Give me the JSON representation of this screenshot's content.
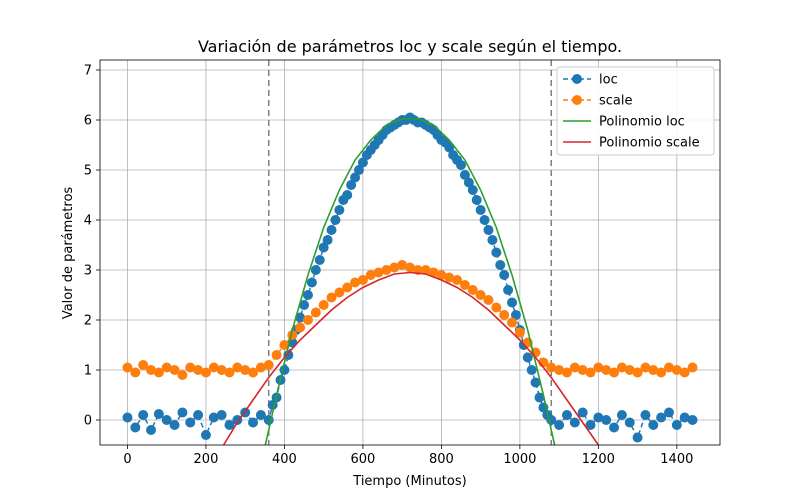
{
  "chart_data": {
    "type": "scatter",
    "title": "Variación de parámetros loc y scale según el tiempo.",
    "xlabel": "Tiempo (Minutos)",
    "ylabel": "Valor de parámetros",
    "xlim": [
      -70,
      1510
    ],
    "ylim": [
      -0.5,
      7.2
    ],
    "xticks": [
      0,
      200,
      400,
      600,
      800,
      1000,
      1200,
      1400
    ],
    "yticks": [
      0,
      1,
      2,
      3,
      4,
      5,
      6,
      7
    ],
    "grid": true,
    "legend": "top-right",
    "vlines": [
      360,
      1080
    ],
    "series": [
      {
        "name": "loc",
        "kind": "markers-dashed",
        "color": "#1f77b4",
        "x": [
          0,
          20,
          40,
          60,
          80,
          100,
          120,
          140,
          160,
          180,
          200,
          220,
          240,
          260,
          280,
          300,
          320,
          340,
          360,
          370,
          380,
          390,
          400,
          410,
          420,
          430,
          440,
          450,
          460,
          470,
          480,
          490,
          500,
          510,
          520,
          530,
          540,
          550,
          560,
          570,
          580,
          590,
          600,
          610,
          620,
          630,
          640,
          650,
          660,
          670,
          680,
          690,
          700,
          710,
          720,
          730,
          740,
          750,
          760,
          770,
          780,
          790,
          800,
          810,
          820,
          830,
          840,
          850,
          860,
          870,
          880,
          890,
          900,
          910,
          920,
          930,
          940,
          950,
          960,
          970,
          980,
          990,
          1000,
          1010,
          1020,
          1030,
          1040,
          1050,
          1060,
          1070,
          1080,
          1100,
          1120,
          1140,
          1160,
          1180,
          1200,
          1220,
          1240,
          1260,
          1280,
          1300,
          1320,
          1340,
          1360,
          1380,
          1400,
          1420,
          1440
        ],
        "values": [
          0.05,
          -0.15,
          0.1,
          -0.2,
          0.12,
          0.0,
          -0.1,
          0.15,
          -0.05,
          0.1,
          -0.3,
          0.05,
          0.1,
          -0.1,
          0.0,
          0.15,
          -0.05,
          0.1,
          0.0,
          0.3,
          0.45,
          0.8,
          1.0,
          1.3,
          1.55,
          1.8,
          2.05,
          2.3,
          2.5,
          2.75,
          3.0,
          3.2,
          3.45,
          3.6,
          3.8,
          4.0,
          4.2,
          4.4,
          4.5,
          4.7,
          4.85,
          5.0,
          5.15,
          5.3,
          5.4,
          5.5,
          5.6,
          5.7,
          5.8,
          5.85,
          5.9,
          5.95,
          6.0,
          6.0,
          6.05,
          6.0,
          5.95,
          5.95,
          5.9,
          5.85,
          5.8,
          5.7,
          5.6,
          5.55,
          5.45,
          5.3,
          5.2,
          5.1,
          4.9,
          4.75,
          4.6,
          4.4,
          4.2,
          4.0,
          3.8,
          3.6,
          3.35,
          3.1,
          2.9,
          2.6,
          2.35,
          2.1,
          1.8,
          1.5,
          1.25,
          1.0,
          0.75,
          0.45,
          0.25,
          0.1,
          0.0,
          -0.1,
          0.1,
          -0.05,
          0.15,
          -0.1,
          0.05,
          0.0,
          -0.15,
          0.1,
          -0.05,
          -0.35,
          0.1,
          -0.1,
          0.05,
          0.15,
          -0.1,
          0.05,
          0.0
        ]
      },
      {
        "name": "scale",
        "kind": "markers-dashed",
        "color": "#ff7f0e",
        "x": [
          0,
          20,
          40,
          60,
          80,
          100,
          120,
          140,
          160,
          180,
          200,
          220,
          240,
          260,
          280,
          300,
          320,
          340,
          360,
          380,
          400,
          420,
          440,
          460,
          480,
          500,
          520,
          540,
          560,
          580,
          600,
          620,
          640,
          660,
          680,
          700,
          720,
          740,
          760,
          780,
          800,
          820,
          840,
          860,
          880,
          900,
          920,
          940,
          960,
          980,
          1000,
          1020,
          1040,
          1060,
          1080,
          1100,
          1120,
          1140,
          1160,
          1180,
          1200,
          1220,
          1240,
          1260,
          1280,
          1300,
          1320,
          1340,
          1360,
          1380,
          1400,
          1420,
          1440
        ],
        "values": [
          1.05,
          0.95,
          1.1,
          1.0,
          0.95,
          1.05,
          1.0,
          0.9,
          1.05,
          1.0,
          0.95,
          1.05,
          1.0,
          0.95,
          1.05,
          1.0,
          0.95,
          1.05,
          1.1,
          1.3,
          1.5,
          1.7,
          1.85,
          2.0,
          2.15,
          2.3,
          2.45,
          2.55,
          2.65,
          2.75,
          2.8,
          2.9,
          2.95,
          3.0,
          3.05,
          3.1,
          3.05,
          3.0,
          3.0,
          2.95,
          2.9,
          2.85,
          2.8,
          2.7,
          2.6,
          2.5,
          2.4,
          2.25,
          2.1,
          1.95,
          1.75,
          1.55,
          1.35,
          1.15,
          1.05,
          1.0,
          0.95,
          1.05,
          1.0,
          0.95,
          1.05,
          1.0,
          0.95,
          1.05,
          1.0,
          0.95,
          1.05,
          1.0,
          0.95,
          1.05,
          1.0,
          0.95,
          1.05
        ]
      },
      {
        "name": "Polinomio loc",
        "kind": "line",
        "color": "#2ca02c",
        "x": [
          350,
          380,
          420,
          460,
          500,
          540,
          580,
          620,
          660,
          700,
          720,
          740,
          780,
          820,
          860,
          900,
          940,
          980,
          1020,
          1060,
          1090
        ],
        "values": [
          -0.55,
          0.5,
          1.8,
          2.9,
          3.85,
          4.6,
          5.2,
          5.6,
          5.9,
          6.02,
          6.03,
          6.02,
          5.9,
          5.6,
          5.2,
          4.6,
          3.85,
          2.9,
          1.8,
          0.5,
          -0.55
        ]
      },
      {
        "name": "Polinomio scale",
        "kind": "line",
        "color": "#d62728",
        "x": [
          245,
          280,
          320,
          360,
          400,
          440,
          480,
          520,
          560,
          600,
          640,
          680,
          720,
          760,
          800,
          840,
          880,
          920,
          960,
          1000,
          1040,
          1080,
          1120,
          1160,
          1200
        ],
        "values": [
          -0.5,
          -0.05,
          0.4,
          0.85,
          1.25,
          1.6,
          1.9,
          2.2,
          2.45,
          2.65,
          2.8,
          2.92,
          2.95,
          2.92,
          2.8,
          2.65,
          2.45,
          2.2,
          1.9,
          1.6,
          1.25,
          0.85,
          0.4,
          -0.05,
          -0.5
        ]
      }
    ]
  }
}
